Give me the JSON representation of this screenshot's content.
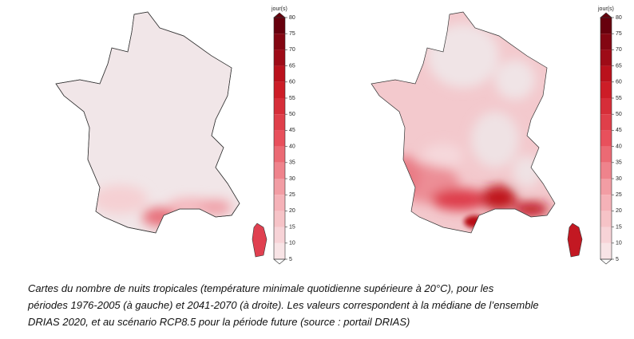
{
  "maps": [
    {
      "colorbar": {
        "title": "jour(s)",
        "ticks": [
          5,
          10,
          15,
          20,
          25,
          30,
          35,
          40,
          45,
          50,
          55,
          60,
          65,
          70,
          75,
          80
        ]
      }
    },
    {
      "colorbar": {
        "title": "jour(s)",
        "ticks": [
          5,
          10,
          15,
          20,
          25,
          30,
          35,
          40,
          45,
          50,
          55,
          60,
          65,
          70,
          75,
          80
        ]
      }
    }
  ],
  "caption": [
    "Cartes du nombre de nuits tropicales (température minimale quotidienne supérieure à 20°C), pour les",
    "périodes 1976-2005 (à gauche) et 2041-2070 (à droite). Les valeurs correspondent à la médiane de l’ensemble",
    "DRIAS 2020, et au scénario RCP8.5 pour la période future (source : portail DRIAS)"
  ]
}
